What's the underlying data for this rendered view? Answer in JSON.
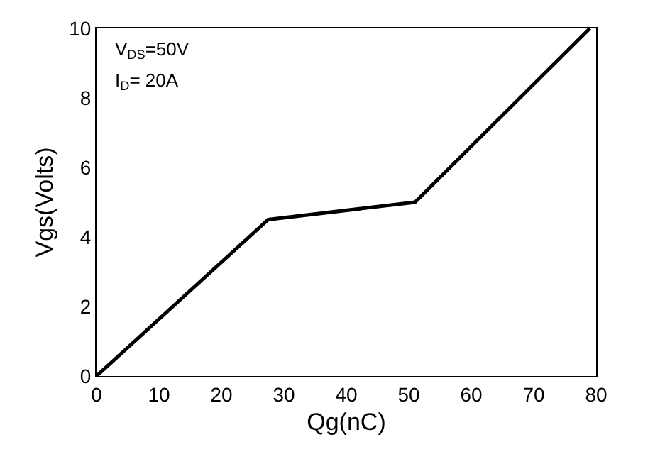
{
  "chart_data": {
    "type": "line",
    "xlabel": "Qg(nC)",
    "ylabel": "Vgs(Volts)",
    "x": [
      0,
      27.5,
      51,
      79
    ],
    "series": [
      {
        "color": "#000000",
        "values": [
          0,
          4.5,
          5,
          10
        ]
      }
    ],
    "xlim": [
      0,
      80
    ],
    "xticks": [
      0,
      10,
      20,
      30,
      40,
      50,
      60,
      70,
      80
    ],
    "ylim": [
      0,
      10
    ],
    "yticks": [
      0,
      2,
      4,
      6,
      8,
      10
    ],
    "marker": "none",
    "line_style": "solid",
    "annotations": [
      "V$_{DS}$=50V",
      "I$_{D}$= 20A"
    ]
  }
}
